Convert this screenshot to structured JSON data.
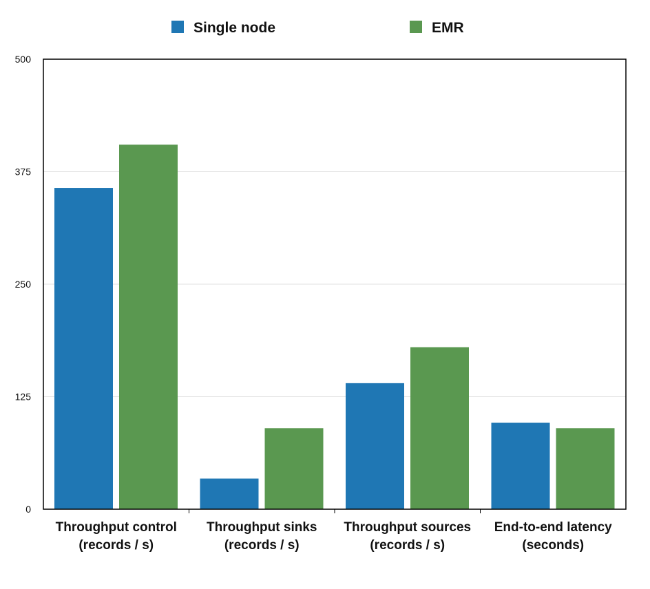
{
  "chart_data": {
    "type": "bar",
    "categories": [
      [
        "Throughput control",
        "(records / s)"
      ],
      [
        "Throughput sinks",
        "(records / s)"
      ],
      [
        "Throughput sources",
        "(records / s)"
      ],
      [
        "End-to-end latency",
        "(seconds)"
      ]
    ],
    "series": [
      {
        "name": "Single node",
        "color": "#1f77b4",
        "values": [
          357,
          34,
          140,
          96
        ]
      },
      {
        "name": "EMR",
        "color": "#5a9850",
        "values": [
          405,
          90,
          180,
          90
        ]
      }
    ],
    "ylim": [
      0,
      500
    ],
    "yticks": [
      0,
      125,
      250,
      375,
      500
    ],
    "grid": true,
    "legend_position": "top-center",
    "title": "",
    "xlabel": "",
    "ylabel": ""
  }
}
